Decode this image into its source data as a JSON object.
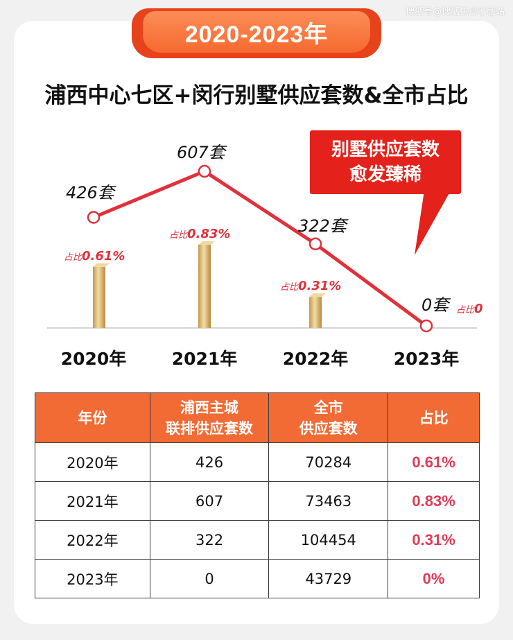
{
  "watermark": "搜狐号@搜狐焦点孝感站",
  "banner": "2020-2023年",
  "chart_data": {
    "type": "line+bar",
    "title": "浦西中心七区+闵行别墅供应套数&全市占比",
    "categories": [
      "2020年",
      "2021年",
      "2022年",
      "2023年"
    ],
    "series": [
      {
        "values": [
          426,
          607,
          322,
          0
        ],
        "labels": [
          "426套",
          "607套",
          "322套",
          "0套"
        ]
      },
      {
        "values": [
          0.61,
          0.83,
          0.31,
          0
        ],
        "unit": "%",
        "label_prefix": "占比",
        "labels": [
          "0.61%",
          "0.83%",
          "0.31%",
          "0"
        ]
      }
    ],
    "colors": {
      "line": "#e0313b",
      "bar": "#d9b56a",
      "ratio_text": "#e0313b"
    },
    "annotation": [
      "别墅供应套数",
      "愈发臻稀"
    ]
  },
  "table": {
    "headers": [
      "年份",
      "浦西主城\n联排供应套数",
      "全市\n供应套数",
      "占比"
    ],
    "rows": [
      [
        "2020年",
        "426",
        "70284",
        "0.61%"
      ],
      [
        "2021年",
        "607",
        "73463",
        "0.83%"
      ],
      [
        "2022年",
        "322",
        "104454",
        "0.31%"
      ],
      [
        "2023年",
        "0",
        "43729",
        "0%"
      ]
    ]
  }
}
